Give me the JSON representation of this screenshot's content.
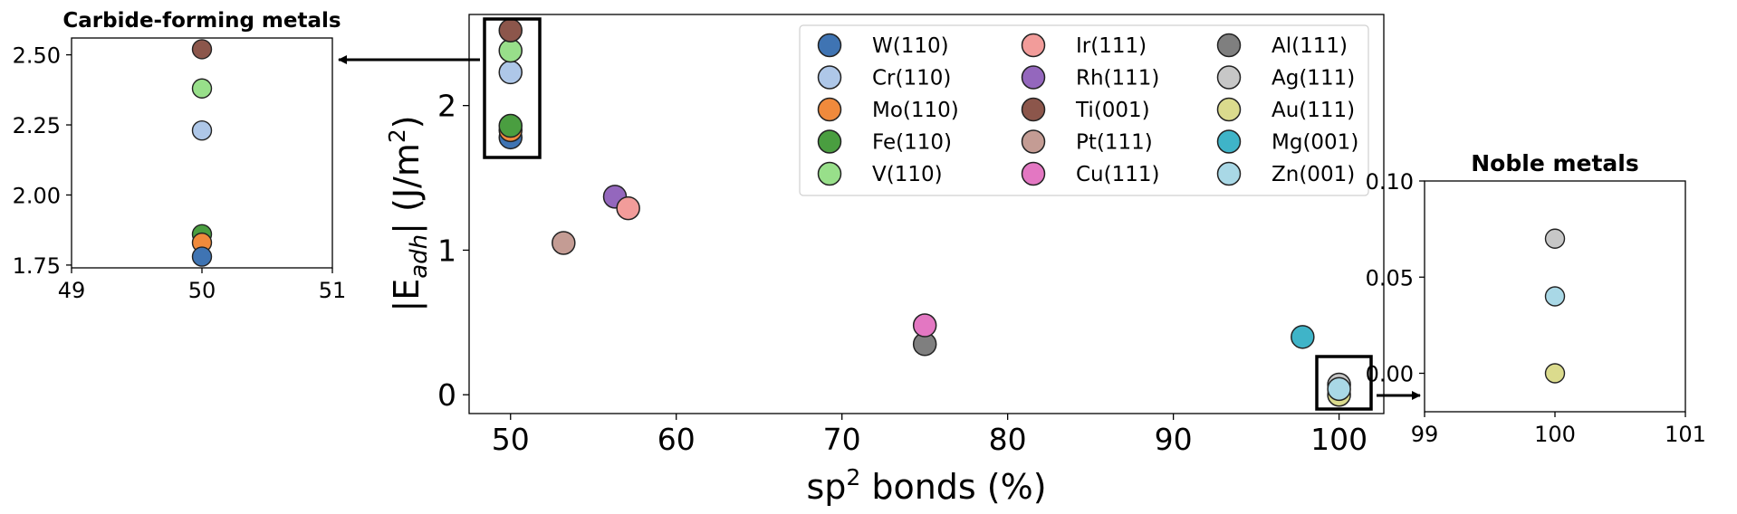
{
  "chart_data": [
    {
      "type": "scatter",
      "panel": "main",
      "xlabel_main": "sp",
      "xlabel_sup": "2",
      "xlabel_rest": " bonds (%)",
      "ylabel_pre": "|E",
      "ylabel_sub": "adh",
      "ylabel_mid": "| (J/m",
      "ylabel_sup": "2",
      "ylabel_end": ")",
      "xlim": [
        47.5,
        102.7
      ],
      "ylim": [
        -0.13,
        2.63
      ],
      "xticks": [
        50,
        60,
        70,
        80,
        90,
        100
      ],
      "yticks": [
        0,
        1,
        2
      ],
      "series": [
        {
          "name": "W(110)",
          "color": "#3f74b3",
          "x": [
            50
          ],
          "y": [
            1.78
          ]
        },
        {
          "name": "Cr(110)",
          "color": "#aec7e8",
          "x": [
            50
          ],
          "y": [
            2.23
          ]
        },
        {
          "name": "Mo(110)",
          "color": "#f08a3c",
          "x": [
            50
          ],
          "y": [
            1.83
          ]
        },
        {
          "name": "Fe(110)",
          "color": "#4a9e40",
          "x": [
            50
          ],
          "y": [
            1.86
          ]
        },
        {
          "name": "V(110)",
          "color": "#98df8a",
          "x": [
            50
          ],
          "y": [
            2.38
          ]
        },
        {
          "name": "Ir(111)",
          "color": "#f29c9a",
          "x": [
            57.1
          ],
          "y": [
            1.29
          ]
        },
        {
          "name": "Rh(111)",
          "color": "#9467bd",
          "x": [
            56.3
          ],
          "y": [
            1.37
          ]
        },
        {
          "name": "Ti(001)",
          "color": "#8c564b",
          "x": [
            50
          ],
          "y": [
            2.52
          ]
        },
        {
          "name": "Pt(111)",
          "color": "#c49c94",
          "x": [
            53.2
          ],
          "y": [
            1.05
          ]
        },
        {
          "name": "Cu(111)",
          "color": "#e377c2",
          "x": [
            75
          ],
          "y": [
            0.48
          ]
        },
        {
          "name": "Al(111)",
          "color": "#7f7f7f",
          "x": [
            75
          ],
          "y": [
            0.35
          ]
        },
        {
          "name": "Ag(111)",
          "color": "#c7c7c7",
          "x": [
            100
          ],
          "y": [
            0.07
          ]
        },
        {
          "name": "Au(111)",
          "color": "#dbdb8d",
          "x": [
            100
          ],
          "y": [
            0.0
          ]
        },
        {
          "name": "Mg(001)",
          "color": "#3fb4c8",
          "x": [
            97.8
          ],
          "y": [
            0.4
          ]
        },
        {
          "name": "Zn(001)",
          "color": "#a9d8e6",
          "x": [
            100
          ],
          "y": [
            0.04
          ]
        }
      ],
      "legend_columns": 3,
      "legend_location": "top-right",
      "highlight_boxes": [
        "carbide-forming",
        "noble"
      ]
    },
    {
      "type": "scatter",
      "panel": "inset-carbide",
      "title": "Carbide-forming metals",
      "xlim": [
        49,
        51
      ],
      "ylim": [
        1.74,
        2.56
      ],
      "xticks": [
        49,
        50,
        51
      ],
      "yticks": [
        1.75,
        2.0,
        2.25,
        2.5
      ],
      "ytick_labels": [
        "1.75",
        "2.00",
        "2.25",
        "2.50"
      ],
      "points": [
        {
          "name": "Ti(001)",
          "x": 50,
          "y": 2.52,
          "color": "#8c564b"
        },
        {
          "name": "V(110)",
          "x": 50,
          "y": 2.38,
          "color": "#98df8a"
        },
        {
          "name": "Cr(110)",
          "x": 50,
          "y": 2.23,
          "color": "#aec7e8"
        },
        {
          "name": "Fe(110)",
          "x": 50,
          "y": 1.86,
          "color": "#4a9e40"
        },
        {
          "name": "Mo(110)",
          "x": 50,
          "y": 1.83,
          "color": "#f08a3c"
        },
        {
          "name": "W(110)",
          "x": 50,
          "y": 1.78,
          "color": "#3f74b3"
        }
      ]
    },
    {
      "type": "scatter",
      "panel": "inset-noble",
      "title": "Noble metals",
      "xlim": [
        99,
        101
      ],
      "ylim": [
        -0.02,
        0.1
      ],
      "xticks": [
        99,
        100,
        101
      ],
      "yticks": [
        0.0,
        0.05,
        0.1
      ],
      "ytick_labels": [
        "0.00",
        "0.05",
        "0.10"
      ],
      "points": [
        {
          "name": "Ag(111)",
          "x": 100,
          "y": 0.07,
          "color": "#c7c7c7"
        },
        {
          "name": "Zn(001)",
          "x": 100,
          "y": 0.04,
          "color": "#a9d8e6"
        },
        {
          "name": "Au(111)",
          "x": 100,
          "y": 0.0,
          "color": "#dbdb8d"
        }
      ]
    }
  ]
}
